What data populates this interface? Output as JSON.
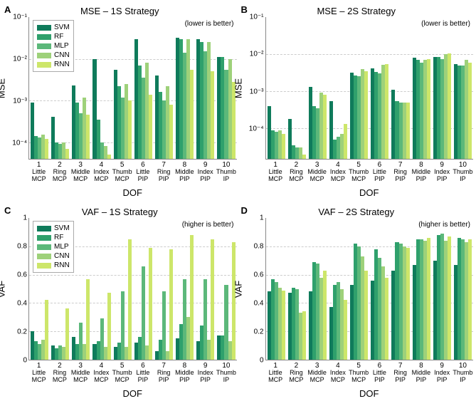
{
  "colors": {
    "series": [
      "#0f7b5b",
      "#2fa06c",
      "#5cb87a",
      "#9ed17a",
      "#cde66a"
    ],
    "grid": "#cccccc",
    "axis": "#888888",
    "background": "#ffffff",
    "text": "#000000"
  },
  "font": {
    "family": "Arial",
    "title_size": 13,
    "label_size": 13,
    "tick_size": 10,
    "xtick_size": 9,
    "legend_size": 10
  },
  "series_labels": [
    "SVM",
    "RF",
    "MLP",
    "CNN",
    "RNN"
  ],
  "categories": [
    {
      "n": "1",
      "top": "Little",
      "bot": "MCP"
    },
    {
      "n": "2",
      "top": "Ring",
      "bot": "MCP"
    },
    {
      "n": "3",
      "top": "Middle",
      "bot": "MCP"
    },
    {
      "n": "4",
      "top": "Index",
      "bot": "MCP"
    },
    {
      "n": "5",
      "top": "Thumb",
      "bot": "MCP"
    },
    {
      "n": "6",
      "top": "Little",
      "bot": "PIP"
    },
    {
      "n": "7",
      "top": "Ring",
      "bot": "PIP"
    },
    {
      "n": "8",
      "top": "Middle",
      "bot": "PIP"
    },
    {
      "n": "9",
      "top": "Index",
      "bot": "PIP"
    },
    {
      "n": "10",
      "top": "Thumb",
      "bot": "IP"
    }
  ],
  "xlabel": "DOF",
  "panels": [
    {
      "letter": "A",
      "title": "MSE – 1S Strategy",
      "ylabel": "MSE",
      "note": "(lower is better)",
      "scale": "log",
      "ylim": [
        4e-05,
        0.1
      ],
      "yticks": [
        {
          "v": 0.1,
          "label": "10⁻¹"
        },
        {
          "v": 0.01,
          "label": "10⁻²"
        },
        {
          "v": 0.001,
          "label": "10⁻³"
        },
        {
          "v": 0.0001,
          "label": "10⁻⁴"
        }
      ],
      "legend": true,
      "data": [
        [
          0.0009,
          0.00014,
          0.00013,
          0.00015,
          0.00012
        ],
        [
          0.0004,
          0.0001,
          9e-05,
          0.0001,
          7e-05
        ],
        [
          0.0023,
          0.0009,
          0.0005,
          0.0012,
          0.00045
        ],
        [
          0.01,
          0.00035,
          0.0001,
          8e-05,
          5e-05
        ],
        [
          0.0055,
          0.0022,
          0.0012,
          0.0025,
          0.001
        ],
        [
          0.03,
          0.007,
          0.0035,
          0.008,
          0.0014
        ],
        [
          0.004,
          0.0016,
          0.001,
          0.0022,
          0.0008
        ],
        [
          0.032,
          0.03,
          0.014,
          0.03,
          0.0055
        ],
        [
          0.03,
          0.025,
          0.015,
          0.025,
          0.005
        ],
        [
          0.011,
          0.011,
          0.0055,
          0.01,
          0.0028
        ]
      ]
    },
    {
      "letter": "B",
      "title": "MSE – 2S Strategy",
      "ylabel": "MSE",
      "note": "(lower is better)",
      "scale": "log",
      "ylim": [
        1.5e-05,
        0.1
      ],
      "yticks": [
        {
          "v": 0.1,
          "label": "10⁻¹"
        },
        {
          "v": 0.01,
          "label": "10⁻²"
        },
        {
          "v": 0.001,
          "label": "10⁻³"
        },
        {
          "v": 0.0001,
          "label": "10⁻⁴"
        }
      ],
      "legend": false,
      "data": [
        [
          0.0004,
          9e-05,
          8e-05,
          9e-05,
          7e-05
        ],
        [
          0.00018,
          3.5e-05,
          3e-05,
          3e-05,
          2e-05
        ],
        [
          0.0013,
          0.0004,
          0.00035,
          0.0009,
          0.0008
        ],
        [
          0.00055,
          5e-05,
          6e-05,
          7e-05,
          0.00013
        ],
        [
          0.0032,
          0.0027,
          0.0025,
          0.004,
          0.0035
        ],
        [
          0.0042,
          0.0033,
          0.003,
          0.0052,
          0.0055
        ],
        [
          0.0011,
          0.00055,
          0.0005,
          0.0005,
          0.0005
        ],
        [
          0.008,
          0.007,
          0.006,
          0.007,
          0.0075
        ],
        [
          0.0085,
          0.0085,
          0.0075,
          0.01,
          0.0105
        ],
        [
          0.0055,
          0.005,
          0.005,
          0.007,
          0.006
        ]
      ]
    },
    {
      "letter": "C",
      "title": "VAF – 1S Strategy",
      "ylabel": "VAF",
      "note": "(higher is better)",
      "scale": "linear",
      "ylim": [
        0,
        1
      ],
      "yticks": [
        {
          "v": 0,
          "label": "0"
        },
        {
          "v": 0.2,
          "label": "0.2"
        },
        {
          "v": 0.4,
          "label": "0.4"
        },
        {
          "v": 0.6,
          "label": "0.6"
        },
        {
          "v": 0.8,
          "label": "0.8"
        },
        {
          "v": 1.0,
          "label": "1"
        }
      ],
      "legend": true,
      "data": [
        [
          0.2,
          0.13,
          0.11,
          0.14,
          0.42
        ],
        [
          0.1,
          0.08,
          0.1,
          0.09,
          0.36
        ],
        [
          0.16,
          0.11,
          0.26,
          0.11,
          0.57
        ],
        [
          0.11,
          0.13,
          0.29,
          0.09,
          0.47
        ],
        [
          0.09,
          0.12,
          0.48,
          0.09,
          0.85
        ],
        [
          0.12,
          0.16,
          0.66,
          0.1,
          0.79
        ],
        [
          0.06,
          0.14,
          0.48,
          0.06,
          0.78
        ],
        [
          0.15,
          0.25,
          0.57,
          0.3,
          0.88
        ],
        [
          0.13,
          0.24,
          0.57,
          0.14,
          0.85
        ],
        [
          0.17,
          0.17,
          0.53,
          0.13,
          0.83
        ]
      ]
    },
    {
      "letter": "D",
      "title": "VAF – 2S Strategy",
      "ylabel": "VAF",
      "note": "(higher is better)",
      "scale": "linear",
      "ylim": [
        0,
        1
      ],
      "yticks": [
        {
          "v": 0,
          "label": "0"
        },
        {
          "v": 0.2,
          "label": "0.2"
        },
        {
          "v": 0.4,
          "label": "0.4"
        },
        {
          "v": 0.6,
          "label": "0.6"
        },
        {
          "v": 0.8,
          "label": "0.8"
        },
        {
          "v": 1.0,
          "label": "1"
        }
      ],
      "legend": false,
      "data": [
        [
          0.48,
          0.57,
          0.55,
          0.51,
          0.49
        ],
        [
          0.47,
          0.51,
          0.5,
          0.33,
          0.34
        ],
        [
          0.48,
          0.69,
          0.68,
          0.58,
          0.63
        ],
        [
          0.37,
          0.53,
          0.55,
          0.5,
          0.42
        ],
        [
          0.53,
          0.82,
          0.8,
          0.73,
          0.63
        ],
        [
          0.56,
          0.78,
          0.72,
          0.66,
          0.58
        ],
        [
          0.63,
          0.83,
          0.82,
          0.8,
          0.79
        ],
        [
          0.67,
          0.85,
          0.85,
          0.84,
          0.86
        ],
        [
          0.7,
          0.88,
          0.89,
          0.84,
          0.87
        ],
        [
          0.67,
          0.86,
          0.85,
          0.83,
          0.85
        ]
      ]
    }
  ]
}
